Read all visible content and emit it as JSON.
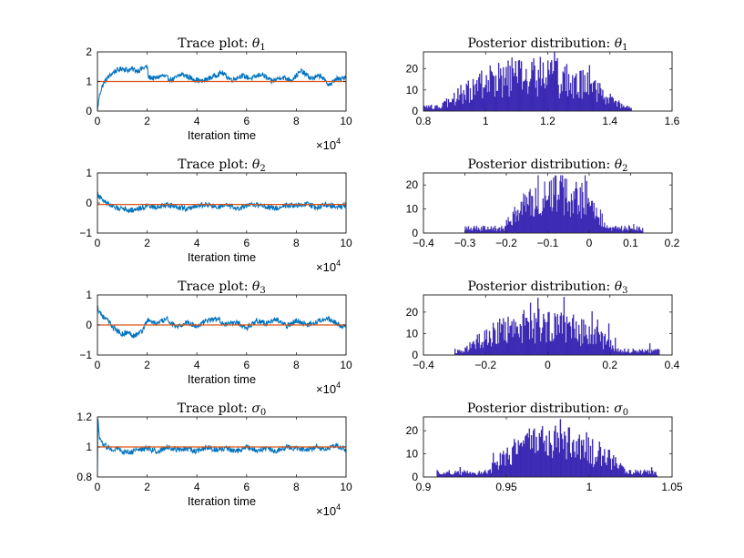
{
  "figure": {
    "colors": {
      "trace": "#0072BD",
      "reference": "#D95319",
      "histogram": "#3B28B4",
      "axes": "#262626"
    }
  },
  "chart_data": [
    {
      "type": "line",
      "title_prefix": "Trace plot: ",
      "title_symbol": "θ",
      "title_sub": "1",
      "xlabel": "Iteration time",
      "x_exponent_base": "×10",
      "x_exponent_power": "4",
      "xlim": [
        0,
        10
      ],
      "ylim": [
        0,
        2
      ],
      "xticks": [
        0,
        2,
        4,
        6,
        8,
        10
      ],
      "yticks": [
        0,
        1,
        2
      ],
      "reference_value": 1.0,
      "series": [
        {
          "name": "trace",
          "x": [
            0,
            0.05,
            0.1,
            0.2,
            0.3,
            0.5,
            0.7,
            0.9,
            1.0,
            1.2,
            1.4,
            1.6,
            1.8,
            2.0,
            2.05,
            2.3,
            2.6,
            3.0,
            3.4,
            3.8,
            4.2,
            4.6,
            5.0,
            5.4,
            5.8,
            6.2,
            6.6,
            7.0,
            7.4,
            7.8,
            8.2,
            8.6,
            9.0,
            9.2,
            9.4,
            9.6,
            9.8,
            10.0
          ],
          "y": [
            0.0,
            0.35,
            0.6,
            0.85,
            1.0,
            1.2,
            1.35,
            1.4,
            1.45,
            1.38,
            1.42,
            1.36,
            1.44,
            1.5,
            1.15,
            1.1,
            1.2,
            1.05,
            1.25,
            1.1,
            1.0,
            1.15,
            1.3,
            1.05,
            1.2,
            1.1,
            1.25,
            1.0,
            1.15,
            1.05,
            1.35,
            1.1,
            1.2,
            0.95,
            0.9,
            1.1,
            1.05,
            1.2
          ]
        }
      ]
    },
    {
      "type": "line",
      "title_prefix": "Trace plot: ",
      "title_symbol": "θ",
      "title_sub": "2",
      "xlabel": "Iteration time",
      "x_exponent_base": "×10",
      "x_exponent_power": "4",
      "xlim": [
        0,
        10
      ],
      "ylim": [
        -1,
        1
      ],
      "xticks": [
        0,
        2,
        4,
        6,
        8,
        10
      ],
      "yticks": [
        -1,
        0,
        1
      ],
      "reference_value": -0.05,
      "series": [
        {
          "name": "trace",
          "x": [
            0,
            0.05,
            0.1,
            0.2,
            0.4,
            0.6,
            0.8,
            1.0,
            1.3,
            1.6,
            2.0,
            2.4,
            2.8,
            3.2,
            3.6,
            4.0,
            4.4,
            4.8,
            5.2,
            5.6,
            6.0,
            6.4,
            6.8,
            7.2,
            7.6,
            8.0,
            8.4,
            8.8,
            9.2,
            9.6,
            10.0
          ],
          "y": [
            0.3,
            0.25,
            0.2,
            0.1,
            0.0,
            -0.12,
            -0.18,
            -0.15,
            -0.25,
            -0.2,
            -0.1,
            -0.15,
            -0.05,
            -0.12,
            -0.2,
            -0.1,
            -0.05,
            -0.15,
            -0.08,
            -0.2,
            -0.1,
            -0.05,
            -0.12,
            -0.18,
            -0.06,
            -0.1,
            -0.02,
            -0.15,
            -0.05,
            -0.1,
            -0.12
          ]
        }
      ]
    },
    {
      "type": "line",
      "title_prefix": "Trace plot: ",
      "title_symbol": "θ",
      "title_sub": "3",
      "xlabel": "Iteration time",
      "x_exponent_base": "×10",
      "x_exponent_power": "4",
      "xlim": [
        0,
        10
      ],
      "ylim": [
        -1,
        1
      ],
      "xticks": [
        0,
        2,
        4,
        6,
        8,
        10
      ],
      "yticks": [
        -1,
        0,
        1
      ],
      "reference_value": 0.0,
      "series": [
        {
          "name": "trace",
          "x": [
            0,
            0.05,
            0.1,
            0.2,
            0.4,
            0.6,
            0.8,
            1.0,
            1.2,
            1.5,
            1.8,
            2.0,
            2.4,
            2.8,
            3.2,
            3.6,
            4.0,
            4.4,
            4.8,
            5.2,
            5.6,
            6.0,
            6.4,
            6.8,
            7.2,
            7.6,
            8.0,
            8.4,
            8.8,
            9.2,
            9.6,
            10.0
          ],
          "y": [
            0.6,
            0.5,
            0.45,
            0.3,
            0.15,
            -0.05,
            -0.2,
            -0.3,
            -0.25,
            -0.35,
            -0.2,
            0.15,
            0.05,
            0.2,
            -0.1,
            0.1,
            -0.05,
            0.15,
            0.2,
            0.0,
            0.1,
            -0.1,
            0.15,
            0.05,
            0.2,
            -0.05,
            0.15,
            0.0,
            0.1,
            0.25,
            0.05,
            -0.1
          ]
        }
      ]
    },
    {
      "type": "line",
      "title_prefix": "Trace plot: ",
      "title_symbol": "σ",
      "title_sub": "0",
      "xlabel": "Iteration time",
      "x_exponent_base": "×10",
      "x_exponent_power": "4",
      "xlim": [
        0,
        10
      ],
      "ylim": [
        0.8,
        1.2
      ],
      "xticks": [
        0,
        2,
        4,
        6,
        8,
        10
      ],
      "yticks": [
        0.8,
        1,
        1.2
      ],
      "reference_value": 1.0,
      "series": [
        {
          "name": "trace",
          "x": [
            0,
            0.02,
            0.05,
            0.1,
            0.2,
            0.4,
            0.6,
            0.8,
            1.0,
            1.3,
            1.6,
            2.0,
            2.4,
            2.8,
            3.2,
            3.6,
            4.0,
            4.4,
            4.8,
            5.2,
            5.6,
            6.0,
            6.4,
            6.8,
            7.2,
            7.6,
            8.0,
            8.4,
            8.8,
            9.2,
            9.6,
            10.0
          ],
          "y": [
            0.8,
            1.2,
            1.1,
            1.05,
            1.02,
            1.0,
            0.98,
            0.99,
            0.97,
            0.96,
            0.98,
            0.99,
            0.97,
            1.0,
            0.98,
            0.99,
            0.97,
            1.0,
            0.98,
            0.99,
            0.97,
            1.0,
            0.98,
            0.99,
            0.97,
            1.0,
            0.99,
            0.98,
            1.0,
            0.99,
            1.01,
            0.98
          ]
        }
      ]
    },
    {
      "type": "bar",
      "title_prefix": "Posterior distribution: ",
      "title_symbol": "θ",
      "title_sub": "1",
      "xlim": [
        0.8,
        1.6
      ],
      "ylim": [
        0,
        28
      ],
      "xticks": [
        0.8,
        1,
        1.2,
        1.4,
        1.6
      ],
      "xtick_labels": [
        "0.8",
        "1",
        "1.2",
        "1.4",
        "1.6"
      ],
      "yticks": [
        0,
        10,
        20
      ],
      "hist_range": [
        0.8,
        1.47
      ],
      "hist_peak": 1.15,
      "hist_height": 16,
      "hist_spread": 0.35,
      "hist_max": 28
    },
    {
      "type": "bar",
      "title_prefix": "Posterior distribution: ",
      "title_symbol": "θ",
      "title_sub": "2",
      "xlim": [
        -0.4,
        0.2
      ],
      "ylim": [
        0,
        25
      ],
      "xticks": [
        -0.4,
        -0.3,
        -0.2,
        -0.1,
        0,
        0.1,
        0.2
      ],
      "xtick_labels": [
        "−0.4",
        "−0.3",
        "−0.2",
        "−0.1",
        "0",
        "0.1",
        "0.2"
      ],
      "yticks": [
        0,
        10,
        20
      ],
      "hist_range": [
        -0.3,
        0.13
      ],
      "hist_peak": -0.08,
      "hist_height": 16,
      "hist_spread": 0.15,
      "hist_max": 24
    },
    {
      "type": "bar",
      "title_prefix": "Posterior distribution: ",
      "title_symbol": "θ",
      "title_sub": "3",
      "xlim": [
        -0.4,
        0.4
      ],
      "ylim": [
        0,
        28
      ],
      "xticks": [
        -0.4,
        -0.2,
        0,
        0.2,
        0.4
      ],
      "xtick_labels": [
        "−0.4",
        "−0.2",
        "0",
        "0.2",
        "0.4"
      ],
      "yticks": [
        0,
        10,
        20
      ],
      "hist_range": [
        -0.3,
        0.36
      ],
      "hist_peak": -0.02,
      "hist_height": 13,
      "hist_spread": 0.3,
      "hist_max": 27
    },
    {
      "type": "bar",
      "title_prefix": "Posterior distribution: ",
      "title_symbol": "σ",
      "title_sub": "0",
      "xlim": [
        0.9,
        1.05
      ],
      "ylim": [
        0,
        26
      ],
      "xticks": [
        0.9,
        0.95,
        1,
        1.05
      ],
      "xtick_labels": [
        "0.9",
        "0.95",
        "1",
        "1.05"
      ],
      "yticks": [
        0,
        10,
        20
      ],
      "hist_range": [
        0.908,
        1.041
      ],
      "hist_peak": 0.98,
      "hist_height": 14,
      "hist_spread": 0.05,
      "hist_max": 25
    }
  ]
}
